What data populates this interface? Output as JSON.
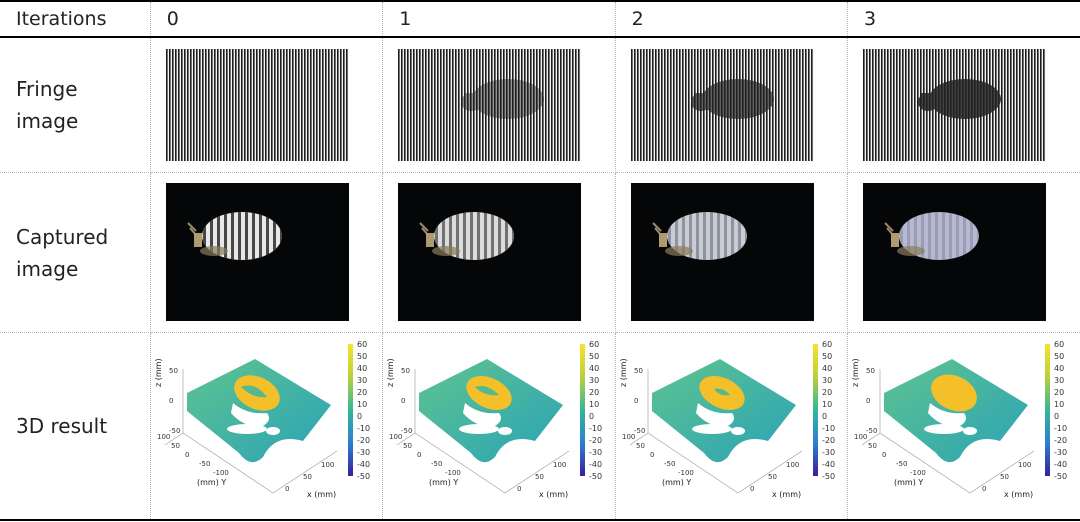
{
  "table": {
    "header_label": "Iterations",
    "iterations": [
      "0",
      "1",
      "2",
      "3"
    ],
    "row_labels": {
      "fringe": [
        "Fringe",
        "image"
      ],
      "captured": [
        "Captured",
        "image"
      ],
      "result": "3D result"
    }
  },
  "plot": {
    "colorbar_ticks": [
      "60",
      "50",
      "40",
      "30",
      "20",
      "10",
      "0",
      "-10",
      "-20",
      "-30",
      "-40",
      "-50"
    ],
    "z_label": "z (mm)",
    "z_ticks": [
      "50",
      "0",
      "-50"
    ],
    "y_label": "(mm) Y",
    "y_ticks": [
      "100",
      "50",
      "0",
      "-50",
      "-100"
    ],
    "x_label": "x (mm)",
    "x_ticks": [
      "0",
      "50",
      "100"
    ]
  },
  "colors": {
    "rule": "#000000",
    "grid": "#b5b5b5",
    "surface": "#2fb9a0",
    "object": "#f4c02a",
    "background_captured": "#050608"
  }
}
